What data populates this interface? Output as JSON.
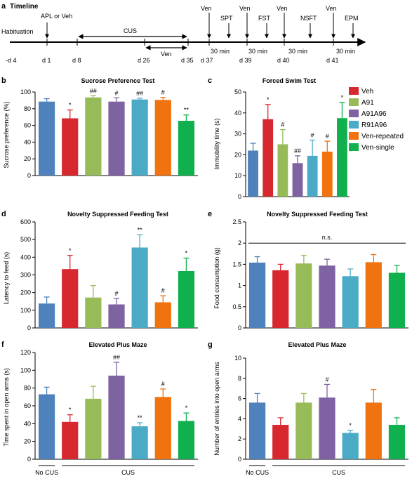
{
  "figure": {
    "panel_letters": {
      "a": "a",
      "b": "b",
      "c": "c",
      "d": "d",
      "e": "e",
      "f": "f",
      "g": "g"
    },
    "timeline_title": "Timeline",
    "habituation": "Habituation",
    "apl_or_veh": "APL or Veh",
    "cus": "CUS",
    "ven": "Ven",
    "days": [
      "-d 4",
      "d 1",
      "d 8",
      "d 26",
      "d 35",
      "d 37",
      "d 39",
      "d 40",
      "d 41"
    ],
    "tests": [
      "SPT",
      "FST",
      "NSFT",
      "EPM"
    ],
    "thirty_min": "30 min",
    "no_cus": "No CUS"
  },
  "colors": {
    "Veh": "#d7282f",
    "A91": "#98bb59",
    "A91A96": "#7e62a1",
    "R91A96": "#4babc6",
    "Ven-repeated": "#f0730f",
    "Ven-single": "#11b04e",
    "NoCUS": "#4f81bd"
  },
  "legend": [
    "Veh",
    "A91",
    "A91A96",
    "R91A96",
    "Ven-repeated",
    "Ven-single"
  ],
  "chart_data": [
    {
      "panel": "b",
      "type": "bar",
      "title": "Sucrose Preference Test",
      "xlabel": "",
      "ylabel": "Sucrose preference (%)",
      "ylim": [
        0,
        100
      ],
      "yticks": [
        0,
        20,
        40,
        60,
        80,
        100
      ],
      "values": [
        88.5,
        68.5,
        93.5,
        88.5,
        91,
        90.5,
        65.5
      ],
      "errors": [
        3.5,
        10,
        2,
        4.5,
        1.5,
        3,
        7
      ],
      "sig": [
        "",
        "*",
        "##",
        "#",
        "##",
        "#",
        "**"
      ]
    },
    {
      "panel": "c",
      "type": "bar",
      "title": "Forced  Swim Test",
      "xlabel": "",
      "ylabel": "Immobility time (s)",
      "ylim": [
        0,
        50
      ],
      "yticks": [
        0,
        10,
        20,
        30,
        40,
        50
      ],
      "values": [
        22,
        37,
        25,
        16,
        19.5,
        21.5,
        37.5
      ],
      "errors": [
        3.5,
        7,
        7,
        3.5,
        7.5,
        5,
        7.5
      ],
      "sig": [
        "",
        "*",
        "#",
        "##",
        "#",
        "#",
        "*"
      ]
    },
    {
      "panel": "d",
      "type": "bar",
      "title": "Novelty  Suppressed Feeding  Test",
      "xlabel": "",
      "ylabel": "Latency to feed (s)",
      "ylim": [
        0,
        600
      ],
      "yticks": [
        0,
        100,
        200,
        300,
        400,
        500,
        600
      ],
      "values": [
        138,
        333,
        172,
        133,
        455,
        145,
        322
      ],
      "errors": [
        37,
        77,
        68,
        33,
        72,
        37,
        73
      ],
      "sig": [
        "",
        "*",
        "",
        "#",
        "**",
        "#",
        "*"
      ]
    },
    {
      "panel": "e",
      "type": "bar",
      "title": "Novelty  Suppressed Feeding  Test",
      "xlabel": "",
      "ylabel": "Food consumption (g)",
      "ylim": [
        0,
        2.5
      ],
      "yticks": [
        0,
        0.5,
        1,
        1.5,
        2,
        2.5
      ],
      "yticklabels": [
        "0",
        "0.5",
        "1",
        "1.5",
        "2",
        "2.5"
      ],
      "values": [
        1.54,
        1.36,
        1.52,
        1.47,
        1.22,
        1.55,
        1.3
      ],
      "errors": [
        0.14,
        0.14,
        0.19,
        0.15,
        0.17,
        0.18,
        0.17
      ],
      "sig": [
        "",
        "",
        "",
        "",
        "",
        "",
        ""
      ],
      "annotation": "n.s."
    },
    {
      "panel": "f",
      "type": "bar",
      "title": "Elevated  Plus Maze",
      "xlabel": "",
      "ylabel": "Time spent in open arms (s)",
      "ylim": [
        0,
        120
      ],
      "yticks": [
        0,
        20,
        40,
        60,
        80,
        100,
        120
      ],
      "values": [
        73,
        42,
        68,
        94,
        37,
        70,
        43
      ],
      "errors": [
        8,
        8,
        14,
        15,
        4,
        9,
        9
      ],
      "sig": [
        "",
        "*",
        "",
        "##",
        "**",
        "#",
        "*"
      ],
      "groups": [
        "No CUS",
        "CUS"
      ]
    },
    {
      "panel": "g",
      "type": "bar",
      "title": "Elevated  Plus Maze",
      "xlabel": "",
      "ylabel": "Number of entries into open arms",
      "ylim": [
        0,
        10
      ],
      "yticks": [
        0,
        2,
        4,
        6,
        8,
        10
      ],
      "values": [
        5.6,
        3.4,
        5.6,
        6.1,
        2.6,
        5.6,
        3.4
      ],
      "errors": [
        0.9,
        0.7,
        0.9,
        1.3,
        0.25,
        1.3,
        0.7
      ],
      "sig": [
        "",
        "",
        "",
        "#",
        "*",
        "",
        ""
      ],
      "groups": [
        "No CUS",
        "CUS"
      ]
    }
  ]
}
